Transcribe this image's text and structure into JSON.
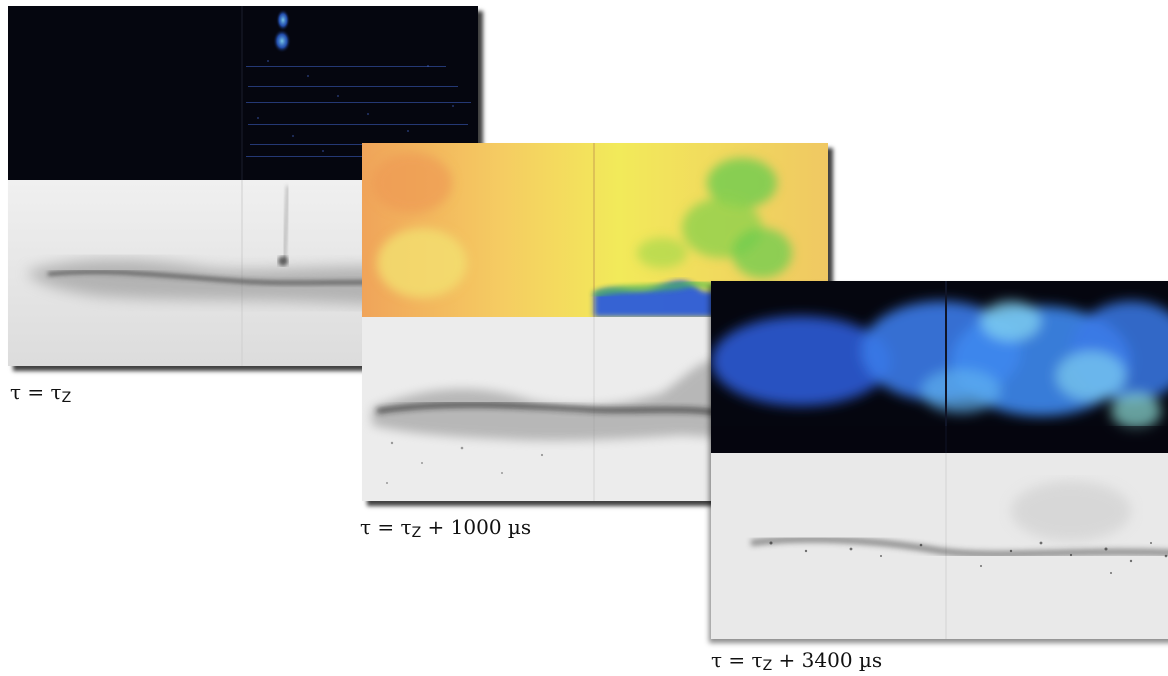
{
  "figure": {
    "panels": [
      {
        "id": "frame-1",
        "caption_main": "τ = τ",
        "caption_sub": "Z",
        "caption_tail": "",
        "top_colormap": "blue-on-black",
        "bottom_colormap": "grayscale"
      },
      {
        "id": "frame-2",
        "caption_main": "τ = τ",
        "caption_sub": "Z",
        "caption_tail": " + 1000 µs",
        "top_colormap": "yellow-orange-green-blue",
        "bottom_colormap": "grayscale"
      },
      {
        "id": "frame-3",
        "caption_main": "τ = τ",
        "caption_sub": "Z",
        "caption_tail": " + 3400 µs",
        "top_colormap": "blue-on-black",
        "bottom_colormap": "grayscale"
      }
    ]
  },
  "colors": {
    "background": "#ffffff",
    "dark_field": "#05060f",
    "luminescence_blue": "#2f6cf0",
    "luminescence_cyan": "#7fd0f0",
    "heat_yellow": "#f2ea5a",
    "heat_orange": "#f0a45a",
    "heat_green": "#4cc04a",
    "heat_blue": "#2255e0",
    "smoke_gray": "#e6e6e6",
    "soot_black": "#222222"
  }
}
